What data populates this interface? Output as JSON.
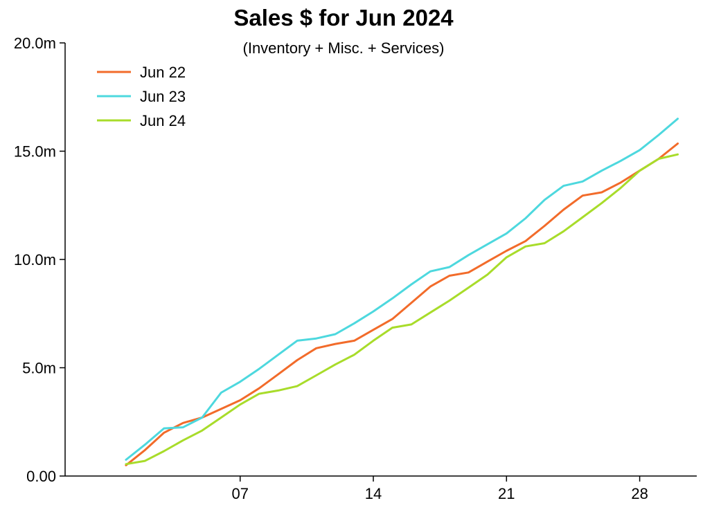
{
  "chart_data": {
    "type": "line",
    "title": "Sales $ for Jun 2024",
    "subtitle": "(Inventory + Misc. + Services)",
    "xlabel": "",
    "ylabel": "",
    "x": [
      1,
      2,
      3,
      4,
      5,
      6,
      7,
      8,
      9,
      10,
      11,
      12,
      13,
      14,
      15,
      16,
      17,
      18,
      19,
      20,
      21,
      22,
      23,
      24,
      25,
      26,
      27,
      28,
      29,
      30
    ],
    "x_ticks": [
      7,
      14,
      21,
      28
    ],
    "x_tick_labels": [
      "07",
      "14",
      "21",
      "28"
    ],
    "xlim": [
      -2.2,
      31
    ],
    "ylim": [
      0,
      20000000
    ],
    "y_ticks": [
      0,
      5000000,
      10000000,
      15000000,
      20000000
    ],
    "y_tick_labels": [
      "0.00",
      "5.0m",
      "10.0m",
      "15.0m",
      "20.0m"
    ],
    "grid": false,
    "legend_position": "top-left",
    "series": [
      {
        "name": "Jun 22",
        "color": "#f26b2a",
        "values": [
          0.5,
          1.2,
          2.0,
          2.45,
          2.7,
          3.1,
          3.5,
          4.05,
          4.7,
          5.35,
          5.9,
          6.1,
          6.25,
          6.75,
          7.25,
          8.0,
          8.75,
          9.25,
          9.4,
          9.9,
          10.4,
          10.85,
          11.55,
          12.3,
          12.95,
          13.1,
          13.55,
          14.1,
          14.65,
          15.35
        ]
      },
      {
        "name": "Jun 23",
        "color": "#4dd8de",
        "values": [
          0.75,
          1.45,
          2.2,
          2.25,
          2.7,
          3.85,
          4.35,
          4.95,
          5.6,
          6.25,
          6.35,
          6.55,
          7.05,
          7.6,
          8.2,
          8.85,
          9.45,
          9.65,
          10.2,
          10.7,
          11.2,
          11.9,
          12.75,
          13.4,
          13.6,
          14.1,
          14.55,
          15.05,
          15.75,
          16.5
        ]
      },
      {
        "name": "Jun 24",
        "color": "#a8dc2a",
        "values": [
          0.55,
          0.7,
          1.15,
          1.65,
          2.1,
          2.7,
          3.3,
          3.8,
          3.95,
          4.15,
          4.65,
          5.15,
          5.6,
          6.25,
          6.85,
          7.0,
          7.55,
          8.1,
          8.7,
          9.3,
          10.1,
          10.6,
          10.75,
          11.3,
          11.95,
          12.6,
          13.3,
          14.1,
          14.65,
          14.85
        ]
      }
    ],
    "value_units": "millions"
  }
}
